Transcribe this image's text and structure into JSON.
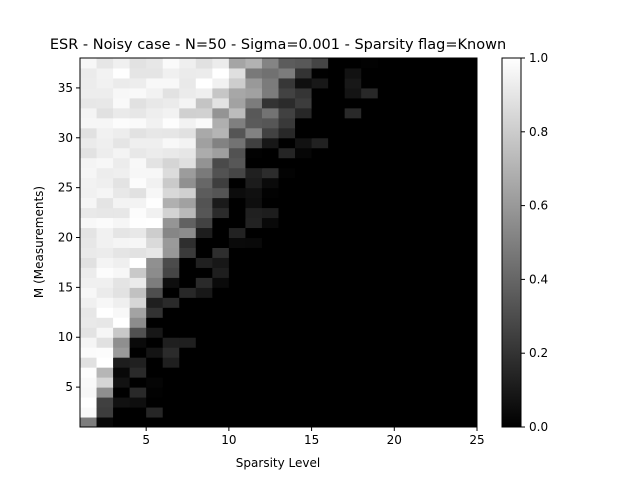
{
  "chart_data": {
    "type": "heatmap",
    "title": "ESR - Noisy case - N=50 - Sigma=0.001 - Sparsity flag=Known",
    "xlabel": "Sparsity Level",
    "ylabel": "M (Measurements)",
    "x_range": [
      1,
      25
    ],
    "y_range": [
      1,
      38
    ],
    "x_ticks": [
      5,
      10,
      15,
      20,
      25
    ],
    "y_ticks": [
      5,
      10,
      15,
      20,
      25,
      30,
      35
    ],
    "colormap": "gray",
    "colorbar": {
      "range": [
        0.0,
        1.0
      ],
      "ticks": [
        0.0,
        0.2,
        0.4,
        0.6,
        0.8,
        1.0
      ],
      "tick_labels": [
        "0.0",
        "0.2",
        "0.4",
        "0.6",
        "0.8",
        "1.0"
      ]
    },
    "transition_boundary": {
      "description": "Per measurement row M: approximate sparsity level where ESR goes from ~1 (white) through grey to 0 (black); ESR stays 0 beyond the far edge.",
      "rows": [
        {
          "M": 1,
          "white_until": 1,
          "black_from": 1.5
        },
        {
          "M": 2,
          "white_until": 1.5,
          "black_from": 2.5
        },
        {
          "M": 5,
          "white_until": 2,
          "black_from": 3.5
        },
        {
          "M": 8,
          "white_until": 2.5,
          "black_from": 4
        },
        {
          "M": 10,
          "white_until": 3,
          "black_from": 5
        },
        {
          "M": 12,
          "white_until": 3.5,
          "black_from": 5.5
        },
        {
          "M": 15,
          "white_until": 4,
          "black_from": 6.5
        },
        {
          "M": 18,
          "white_until": 4.5,
          "black_from": 7.5
        },
        {
          "M": 20,
          "white_until": 5,
          "black_from": 9
        },
        {
          "M": 22,
          "white_until": 5.5,
          "black_from": 10
        },
        {
          "M": 25,
          "white_until": 6,
          "black_from": 11
        },
        {
          "M": 28,
          "white_until": 6.5,
          "black_from": 12
        },
        {
          "M": 30,
          "white_until": 7,
          "black_from": 13.5
        },
        {
          "M": 33,
          "white_until": 7.5,
          "black_from": 15
        },
        {
          "M": 35,
          "white_until": 8,
          "black_from": 16
        },
        {
          "M": 38,
          "white_until": 9,
          "black_from": 17
        }
      ]
    }
  }
}
